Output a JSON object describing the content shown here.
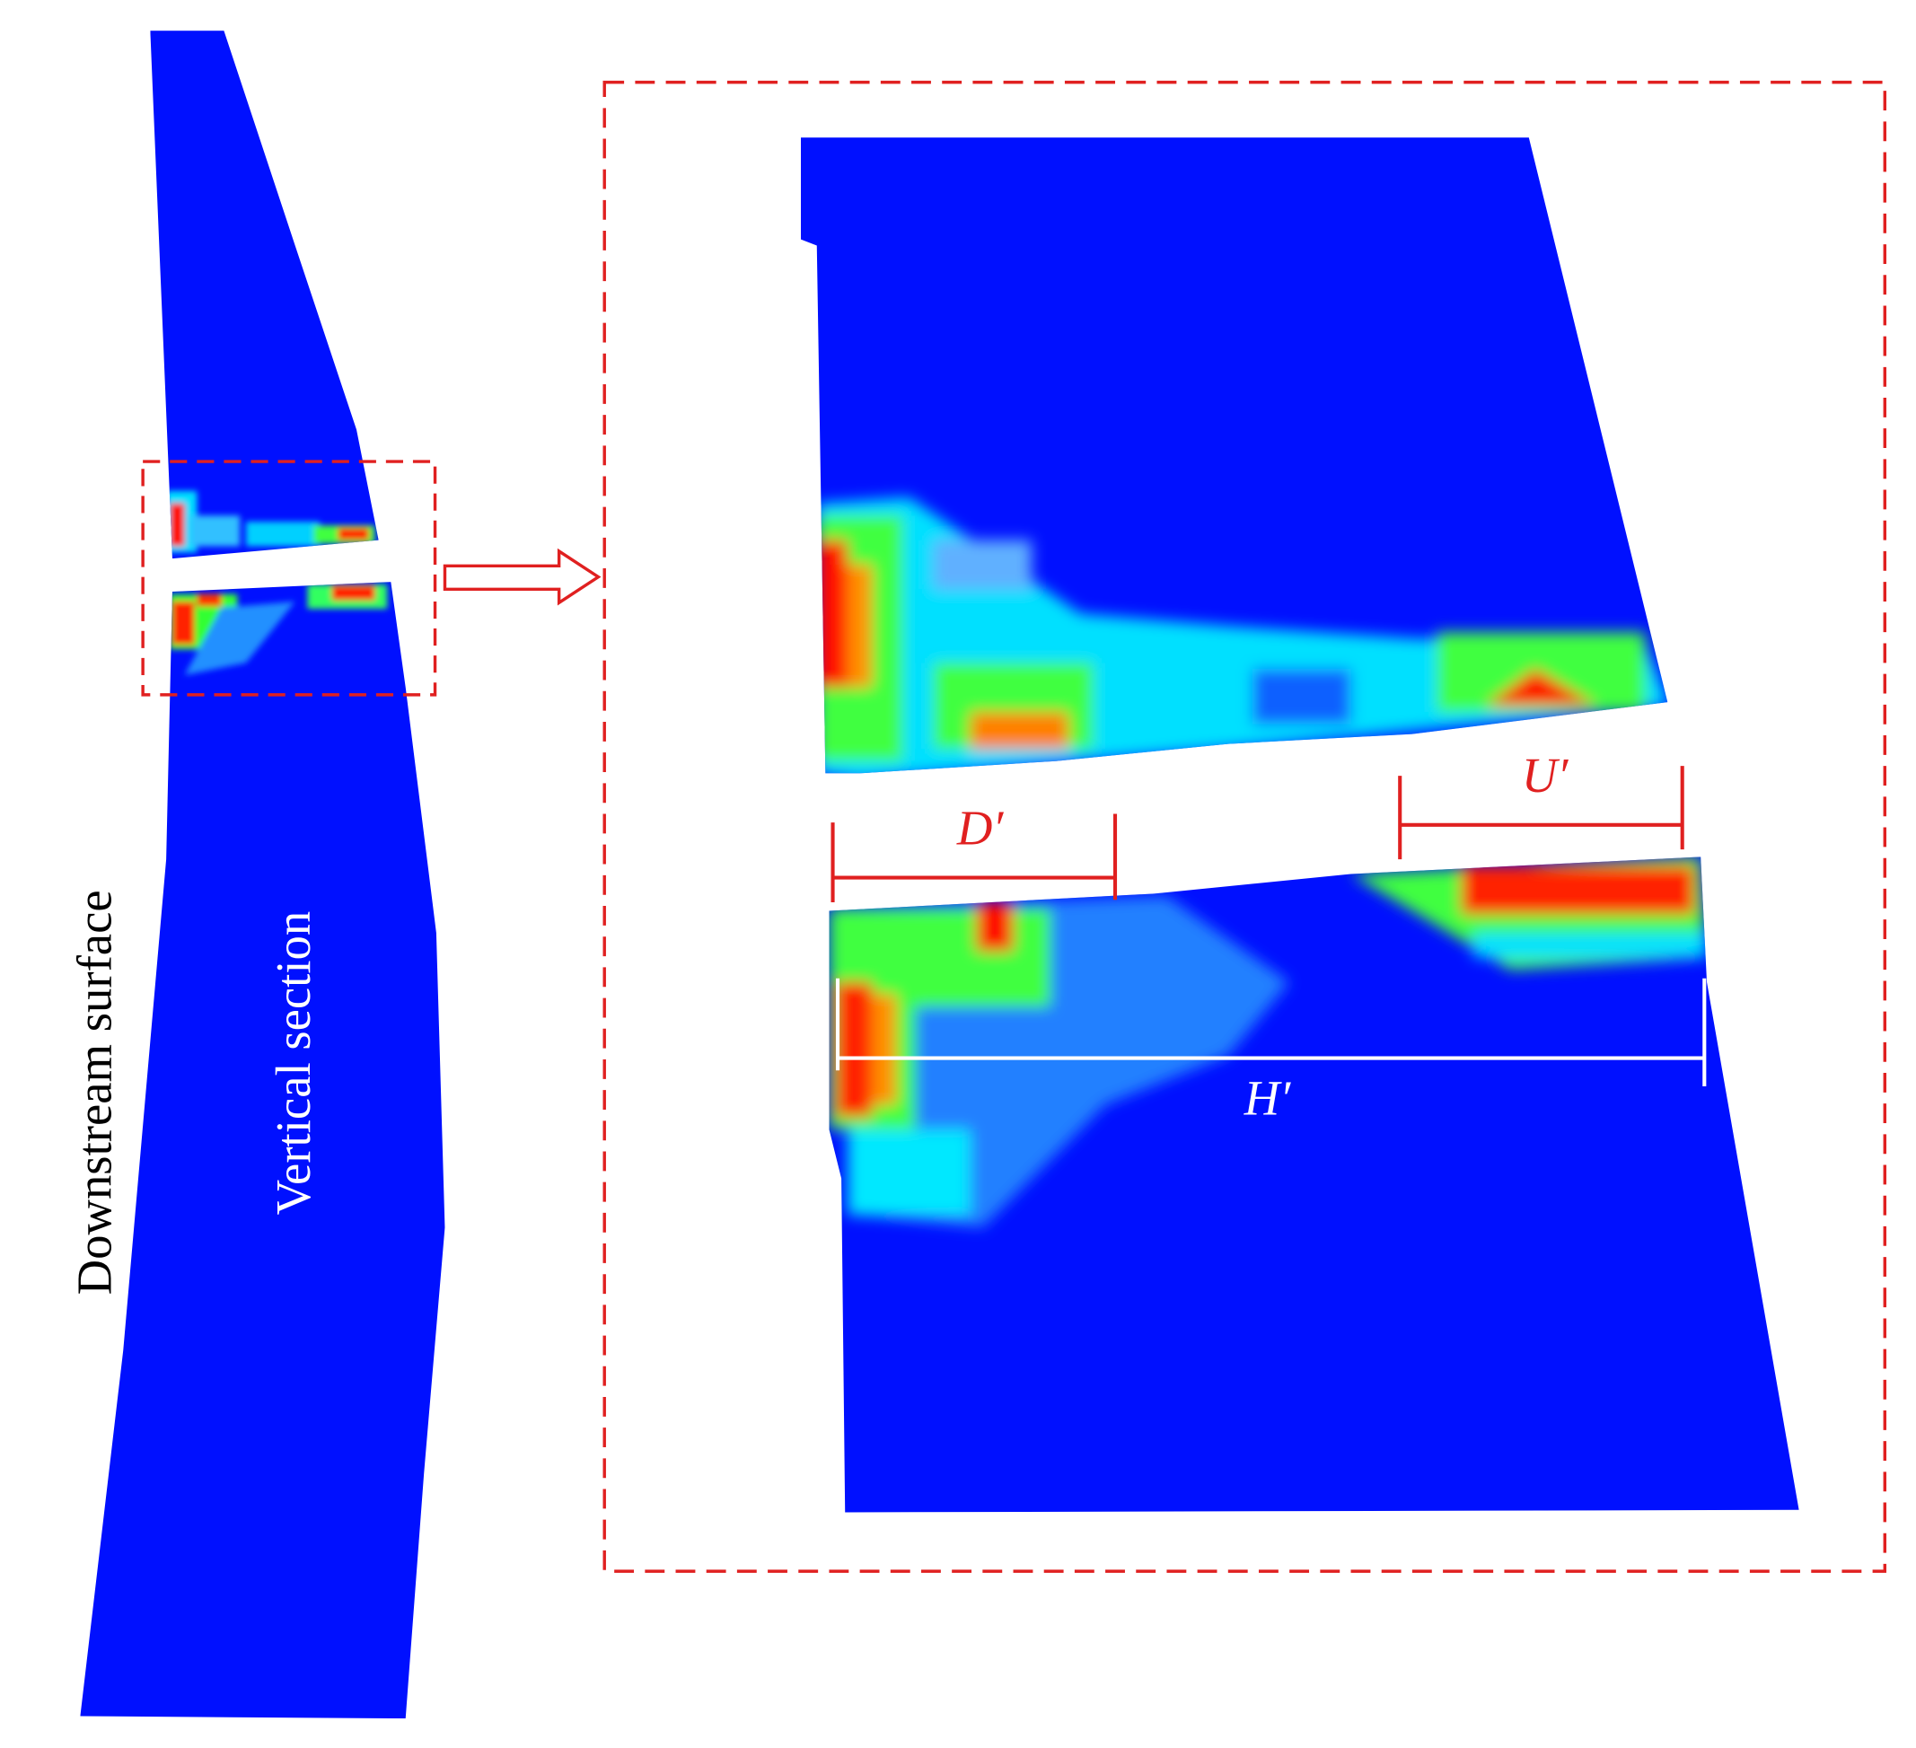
{
  "left_panel": {
    "label_outer": "Downstream surface",
    "label_inner": "Vertical section"
  },
  "zoom_panel": {
    "label_d": "D′",
    "label_u": "U′",
    "label_h": "H′"
  }
}
